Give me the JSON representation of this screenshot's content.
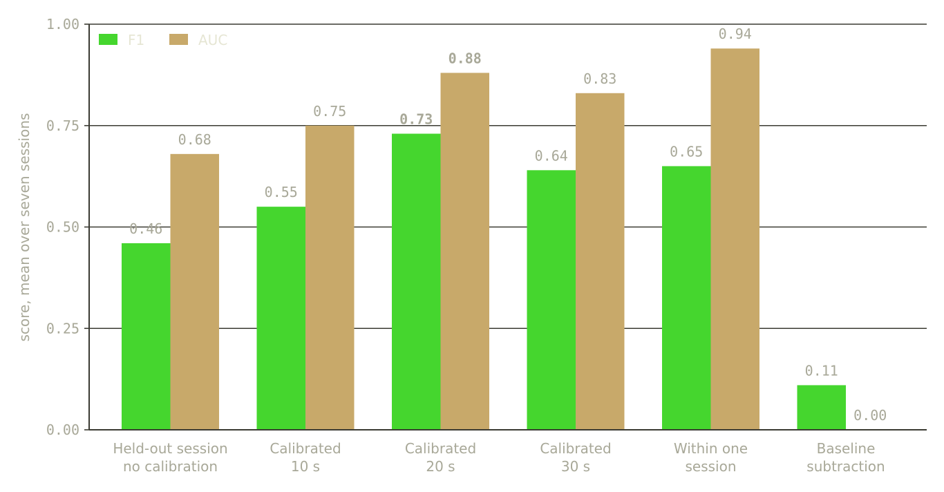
{
  "chart_data": {
    "type": "bar",
    "title": "",
    "xlabel": "",
    "ylabel": "score, mean over seven sessions",
    "ylim": [
      0,
      1
    ],
    "yticks": [
      "0.00",
      "0.25",
      "0.50",
      "0.75",
      "1.00"
    ],
    "grid": "horizontal",
    "legend_position": "top-left",
    "categories": [
      [
        "Held-out session",
        "no calibration"
      ],
      [
        "Calibrated",
        "10 s"
      ],
      [
        "Calibrated",
        "20 s"
      ],
      [
        "Calibrated",
        "30 s"
      ],
      [
        "Within one",
        "session"
      ],
      [
        "Baseline",
        "subtraction"
      ]
    ],
    "series": [
      {
        "name": "F1",
        "color": "#45d62e",
        "values": [
          0.46,
          0.55,
          0.73,
          0.64,
          0.65,
          0.11
        ],
        "labels": [
          "0.46",
          "0.55",
          "0.73",
          "0.64",
          "0.65",
          "0.11"
        ]
      },
      {
        "name": "AUC",
        "color": "#c8a96a",
        "values": [
          0.68,
          0.75,
          0.88,
          0.83,
          0.94,
          0.0
        ],
        "labels": [
          "0.68",
          "0.75",
          "0.88",
          "0.83",
          "0.94",
          "0.00"
        ]
      }
    ],
    "highlighted_category": 2
  }
}
